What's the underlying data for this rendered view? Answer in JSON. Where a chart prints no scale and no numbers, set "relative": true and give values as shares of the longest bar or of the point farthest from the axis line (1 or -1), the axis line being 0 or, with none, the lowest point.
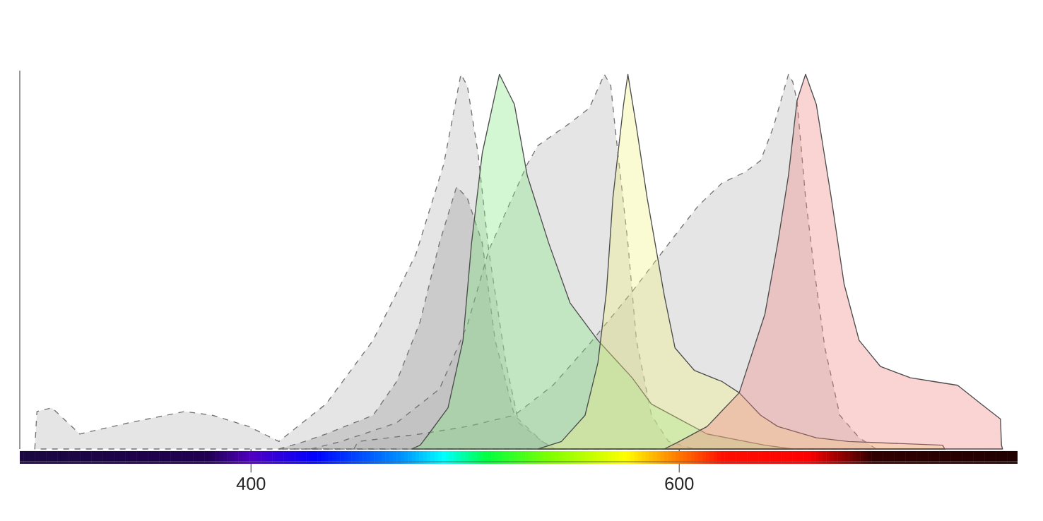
{
  "chart_data": {
    "type": "area",
    "relative": true,
    "xlim": [
      292,
      758
    ],
    "xticks": [
      400,
      600
    ],
    "series": [
      {
        "color": "#b4b4b4",
        "line_style": "dashed",
        "x": [
          299,
          300,
          307,
          320,
          343,
          369,
          382,
          399,
          413,
          435,
          457,
          477,
          490,
          498,
          501,
          506,
          511,
          519,
          525,
          536,
          542
        ],
        "values": [
          0,
          0.1,
          0.11,
          0.04,
          0.07,
          0.1,
          0.09,
          0.06,
          0.02,
          0.12,
          0.29,
          0.52,
          0.76,
          1,
          0.97,
          0.79,
          0.53,
          0.23,
          0.07,
          0.02,
          0
        ]
      },
      {
        "color": "#9a9a9a",
        "line_style": "dashed",
        "x": [
          413,
          425,
          435,
          457,
          468,
          479,
          488,
          496,
          501,
          508,
          514,
          523,
          536,
          542
        ],
        "values": [
          0,
          0.02,
          0.04,
          0.09,
          0.18,
          0.34,
          0.55,
          0.7,
          0.67,
          0.55,
          0.29,
          0.09,
          0.02,
          0
        ]
      },
      {
        "color": "#b4b4b4",
        "line_style": "dashed",
        "x": [
          428,
          442,
          468,
          488,
          501,
          511,
          529,
          534,
          549,
          558,
          565,
          568,
          570,
          576,
          580,
          587,
          595,
          607
        ],
        "values": [
          0,
          0.02,
          0.07,
          0.16,
          0.33,
          0.53,
          0.76,
          0.81,
          0.87,
          0.91,
          1,
          0.97,
          0.86,
          0.55,
          0.29,
          0.09,
          0.02,
          0
        ]
      },
      {
        "color": "#b4b4b4",
        "line_style": "dashed",
        "x": [
          448,
          450,
          479,
          501,
          523,
          541,
          558,
          578,
          598,
          609,
          620,
          631,
          638,
          644,
          651,
          653,
          655,
          659,
          663,
          668,
          675,
          684,
          692
        ],
        "values": [
          0,
          0.02,
          0.04,
          0.06,
          0.09,
          0.17,
          0.28,
          0.42,
          0.57,
          0.65,
          0.71,
          0.74,
          0.77,
          0.86,
          1,
          0.98,
          0.93,
          0.67,
          0.48,
          0.27,
          0.09,
          0.03,
          0
        ]
      },
      {
        "color": "#80e880",
        "line_style": "solid",
        "x": [
          475,
          479,
          483,
          492,
          499,
          503,
          508,
          516,
          523,
          529,
          539,
          549,
          562,
          578,
          587,
          600,
          613,
          640,
          653
        ],
        "values": [
          0,
          0.01,
          0.04,
          0.11,
          0.29,
          0.55,
          0.79,
          1,
          0.92,
          0.73,
          0.55,
          0.39,
          0.29,
          0.19,
          0.12,
          0.08,
          0.04,
          0.01,
          0
        ]
      },
      {
        "color": "#f0f080",
        "line_style": "solid",
        "x": [
          534,
          545,
          556,
          562,
          566,
          569,
          574,
          576,
          580,
          585,
          589,
          593,
          598,
          607,
          620,
          628,
          638,
          646,
          664,
          679,
          723,
          724
        ],
        "values": [
          0,
          0.02,
          0.09,
          0.23,
          0.42,
          0.67,
          0.92,
          1,
          0.86,
          0.67,
          0.54,
          0.41,
          0.27,
          0.21,
          0.18,
          0.15,
          0.09,
          0.06,
          0.03,
          0.02,
          0.01,
          0
        ]
      },
      {
        "color": "#f08080",
        "line_style": "solid",
        "x": [
          593,
          600,
          613,
          628,
          640,
          646,
          651,
          655,
          659,
          664,
          671,
          677,
          684,
          694,
          708,
          719,
          730,
          741,
          750,
          750.5,
          751
        ],
        "values": [
          0,
          0.02,
          0.06,
          0.15,
          0.36,
          0.55,
          0.73,
          0.93,
          1,
          0.92,
          0.67,
          0.44,
          0.29,
          0.22,
          0.19,
          0.18,
          0.17,
          0.12,
          0.08,
          0.01,
          0
        ]
      }
    ]
  }
}
